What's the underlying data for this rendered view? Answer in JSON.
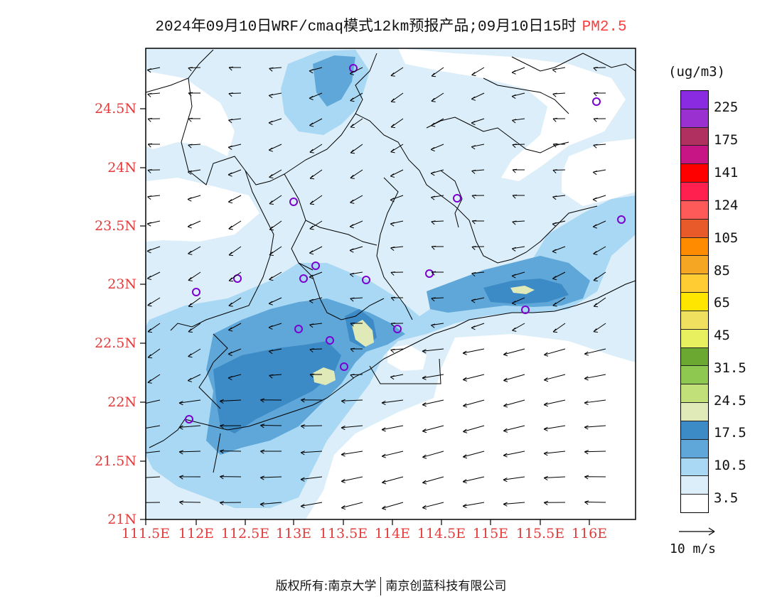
{
  "title": {
    "text": "2024年09月10日WRF/cmaq模式12km预报产品;09月10日15时",
    "species": "PM2.5"
  },
  "lat_labels": [
    "24.5N",
    "24N",
    "23.5N",
    "23N",
    "22.5N",
    "22N",
    "21.5N",
    "21N"
  ],
  "lon_labels": [
    "111.5E",
    "112E",
    "112.5E",
    "113E",
    "113.5E",
    "114E",
    "114.5E",
    "115E",
    "115.5E",
    "116E"
  ],
  "legend": {
    "unit": "(ug/m3)",
    "levels": [
      "225",
      "175",
      "141",
      "124",
      "105",
      "85",
      "65",
      "45",
      "31.5",
      "24.5",
      "17.5",
      "10.5",
      "3.5"
    ],
    "colors": [
      "#8a2be2",
      "#9b30d0",
      "#b03060",
      "#c71585",
      "#ff0000",
      "#ff2050",
      "#ff5a5a",
      "#e85a2a",
      "#ff8c00",
      "#f5a623",
      "#ffcc33",
      "#ffe600",
      "#f0e060",
      "#e8f060",
      "#6aa832",
      "#8fc850",
      "#c2e07a",
      "#dfeab8",
      "#3c8ac6",
      "#5ea7d8",
      "#a8d8f4",
      "#dceef9",
      "#ffffff"
    ]
  },
  "wind_reference": "10 m/s",
  "footer": {
    "left": "版权所有:南京大学",
    "right": "南京创蓝科技有限公司"
  }
}
